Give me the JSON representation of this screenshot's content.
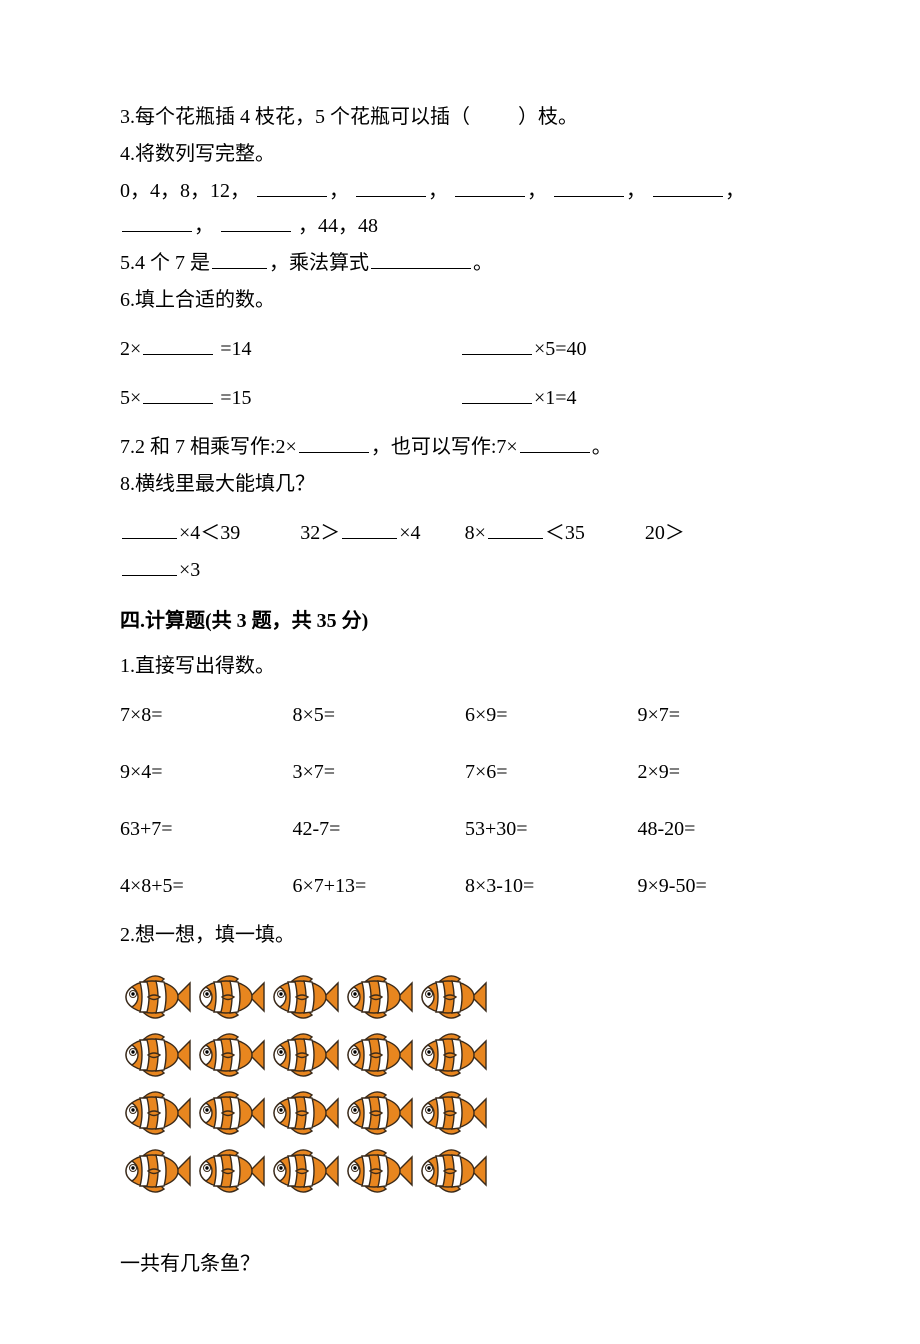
{
  "fill_in": {
    "q3": "3.每个花瓶插 4 枝花，5 个花瓶可以插（",
    "q3_end": "）枝。",
    "q4": "4.将数列写完整。",
    "q4_seq_prefix": "0，4，8，12，",
    "q4_seq_suffix": "，44，48",
    "q5_a": "5.4 个 7 是",
    "q5_b": "，乘法算式",
    "q5_c": "。",
    "q6": "6.填上合适的数。",
    "q6_r1a_pref": "2×",
    "q6_r1a_suf": " =14",
    "q6_r1b_suf": "×5=40",
    "q6_r2a_pref": "5×",
    "q6_r2a_suf": " =15",
    "q6_r2b_suf": "×1=4",
    "q7_a": "7.2 和 7 相乘写作:2×",
    "q7_b": "，也可以写作:7×",
    "q7_c": "。",
    "q8": "8.横线里最大能填几？",
    "q8_1_suf": "×4＜39",
    "q8_2_pre": "32＞",
    "q8_2_suf": "×4",
    "q8_3_pre": "8×",
    "q8_3_suf": "＜35",
    "q8_4_pre": "20＞",
    "q8_4_suf": "×3"
  },
  "section4_title": "四.计算题(共 3 题，共 35 分)",
  "calc": {
    "q1": "1.直接写出得数。",
    "cells": [
      "7×8=",
      "8×5=",
      "6×9=",
      "9×7=",
      "9×4=",
      "3×7=",
      "7×6=",
      "2×9=",
      "63+7=",
      "42-7=",
      "53+30=",
      "48-20=",
      "4×8+5=",
      "6×7+13=",
      "8×3-10=",
      "9×9-50="
    ],
    "q2": "2.想一想，填一填。",
    "q2_ask": "一共有几条鱼？"
  },
  "fish": {
    "rows": 4,
    "cols": 5,
    "body_color": "#e8861f",
    "stripe_color": "#ffffff",
    "outline_color": "#3a2a1a",
    "eye_color": "#000000"
  }
}
